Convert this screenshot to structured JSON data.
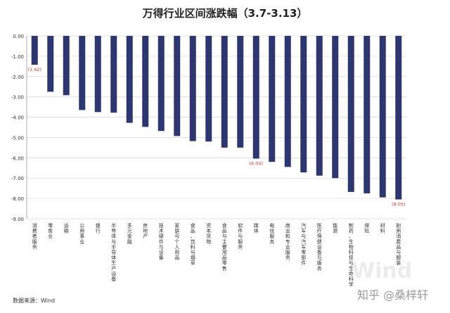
{
  "chart_data": {
    "type": "bar",
    "title": "万得行业区间涨跌幅（3.7-3.13）",
    "categories": [
      "消费者服务",
      "零售业",
      "运输",
      "公用事业",
      "银行",
      "半导体与半导体生产设备",
      "多元金融",
      "房地产",
      "技术硬件与设备",
      "家庭与个人用品",
      "食品、饮料与烟草",
      "资本货物",
      "食品与主要用品零售",
      "软件与服务",
      "媒体",
      "电信服务",
      "商业和专业服务",
      "汽车与汽车零部件",
      "医疗保健设备与服务",
      "能源",
      "制药、生物科技与生命科学",
      "保险",
      "材料",
      "耐用消费品与服装"
    ],
    "values": [
      -1.42,
      -2.75,
      -2.92,
      -3.65,
      -3.75,
      -3.78,
      -4.28,
      -4.48,
      -4.68,
      -4.93,
      -5.18,
      -5.2,
      -5.5,
      -5.5,
      -6.04,
      -6.2,
      -6.45,
      -6.72,
      -6.88,
      -7.0,
      -7.68,
      -7.75,
      -7.95,
      -8.05
    ],
    "data_labels": [
      {
        "index": 0,
        "text": "(1.42)"
      },
      {
        "index": 14,
        "text": "(6.04)"
      },
      {
        "index": 23,
        "text": "(8.05)"
      }
    ],
    "ylim": [
      -9,
      0
    ],
    "yticks": [
      "0.00",
      "-1.00",
      "-2.00",
      "-3.00",
      "-4.00",
      "-5.00",
      "-6.00",
      "-7.00",
      "-8.00",
      "-9.00"
    ],
    "grid": true,
    "bar_color": "#2e3670",
    "label_color": "#c0392b"
  },
  "source": "数据来源：Wind",
  "watermark": "Wind",
  "credit": "知乎 @桑梓轩"
}
